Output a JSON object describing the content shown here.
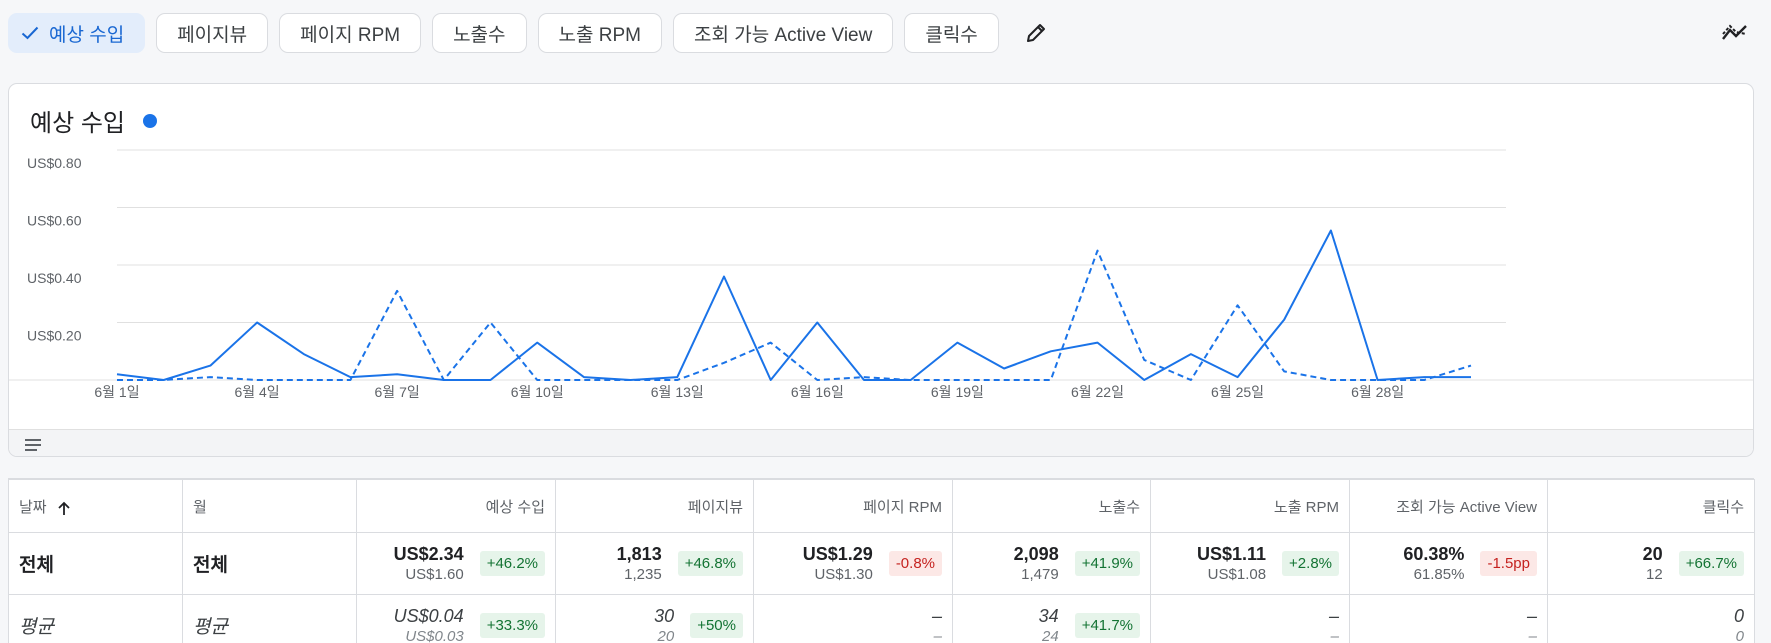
{
  "chips": [
    {
      "label": "예상 수입",
      "active": true
    },
    {
      "label": "페이지뷰",
      "active": false
    },
    {
      "label": "페이지 RPM",
      "active": false
    },
    {
      "label": "노출수",
      "active": false
    },
    {
      "label": "노출 RPM",
      "active": false
    },
    {
      "label": "조회 가능 Active View",
      "active": false
    },
    {
      "label": "클릭수",
      "active": false
    }
  ],
  "icons": {
    "check": "check-icon",
    "edit": "pencil-icon",
    "compare": "trend-compare-icon",
    "menu": "menu-lines-icon"
  },
  "colors": {
    "accent": "#1a73e8",
    "active_chip_bg": "#e3edfb",
    "positive": "#137333",
    "negative": "#c5221f"
  },
  "chart": {
    "title": "예상 수입"
  },
  "chart_data": {
    "type": "line",
    "title": "예상 수입",
    "xlabel": "",
    "ylabel": "",
    "ylim": [
      0,
      0.8
    ],
    "y_ticks": [
      {
        "value": 0.2,
        "label": "US$0.20"
      },
      {
        "value": 0.4,
        "label": "US$0.40"
      },
      {
        "value": 0.6,
        "label": "US$0.60"
      },
      {
        "value": 0.8,
        "label": "US$0.80"
      }
    ],
    "x_ticks": [
      {
        "day": 1,
        "label": "6월 1일"
      },
      {
        "day": 4,
        "label": "6월 4일"
      },
      {
        "day": 7,
        "label": "6월 7일"
      },
      {
        "day": 10,
        "label": "6월 10일"
      },
      {
        "day": 13,
        "label": "6월 13일"
      },
      {
        "day": 16,
        "label": "6월 16일"
      },
      {
        "day": 19,
        "label": "6월 19일"
      },
      {
        "day": 22,
        "label": "6월 22일"
      },
      {
        "day": 25,
        "label": "6월 25일"
      },
      {
        "day": 28,
        "label": "6월 28일"
      }
    ],
    "grid": true,
    "x": [
      1,
      2,
      3,
      4,
      5,
      6,
      7,
      8,
      9,
      10,
      11,
      12,
      13,
      14,
      15,
      16,
      17,
      18,
      19,
      20,
      21,
      22,
      23,
      24,
      25,
      26,
      27,
      28,
      29,
      30
    ],
    "series": [
      {
        "name": "current",
        "style": "solid",
        "values": [
          0.02,
          0.0,
          0.05,
          0.2,
          0.09,
          0.01,
          0.02,
          0.0,
          0.0,
          0.13,
          0.01,
          0.0,
          0.01,
          0.36,
          0.0,
          0.2,
          0.0,
          0.0,
          0.13,
          0.04,
          0.1,
          0.13,
          0.0,
          0.09,
          0.01,
          0.21,
          0.52,
          0.0,
          0.01,
          0.01
        ]
      },
      {
        "name": "previous",
        "style": "dashed",
        "values": [
          0.0,
          0.0,
          0.01,
          0.0,
          0.0,
          0.0,
          0.31,
          0.0,
          0.2,
          0.0,
          0.0,
          0.0,
          0.0,
          0.06,
          0.13,
          0.0,
          0.01,
          0.0,
          0.0,
          0.0,
          0.0,
          0.45,
          0.07,
          0.0,
          0.26,
          0.03,
          0.0,
          0.0,
          0.0,
          0.05
        ]
      }
    ]
  },
  "table": {
    "headers": {
      "date": "날짜",
      "month": "월",
      "earnings": "예상 수입",
      "pageviews": "페이지뷰",
      "page_rpm": "페이지 RPM",
      "impressions": "노출수",
      "imp_rpm": "노출 RPM",
      "active_view": "조회 가능 Active View",
      "clicks": "클릭수"
    },
    "total": {
      "date": "전체",
      "month": "전체",
      "earnings": {
        "v1": "US$2.34",
        "v2": "US$1.60",
        "badge": "+46.2%",
        "tone": "pos"
      },
      "pageviews": {
        "v1": "1,813",
        "v2": "1,235",
        "badge": "+46.8%",
        "tone": "pos"
      },
      "page_rpm": {
        "v1": "US$1.29",
        "v2": "US$1.30",
        "badge": "-0.8%",
        "tone": "neg"
      },
      "impressions": {
        "v1": "2,098",
        "v2": "1,479",
        "badge": "+41.9%",
        "tone": "pos"
      },
      "imp_rpm": {
        "v1": "US$1.11",
        "v2": "US$1.08",
        "badge": "+2.8%",
        "tone": "pos"
      },
      "active_view": {
        "v1": "60.38%",
        "v2": "61.85%",
        "badge": "-1.5pp",
        "tone": "neg"
      },
      "clicks": {
        "v1": "20",
        "v2": "12",
        "badge": "+66.7%",
        "tone": "pos"
      }
    },
    "average": {
      "date": "평균",
      "month": "평균",
      "earnings": {
        "v1": "US$0.04",
        "v2": "US$0.03",
        "badge": "+33.3%",
        "tone": "pos"
      },
      "pageviews": {
        "v1": "30",
        "v2": "20",
        "badge": "+50%",
        "tone": "pos"
      },
      "page_rpm": {
        "v1": "–",
        "v2": "–",
        "badge": "",
        "tone": "none"
      },
      "impressions": {
        "v1": "34",
        "v2": "24",
        "badge": "+41.7%",
        "tone": "pos"
      },
      "imp_rpm": {
        "v1": "–",
        "v2": "–",
        "badge": "",
        "tone": "none"
      },
      "active_view": {
        "v1": "–",
        "v2": "–",
        "badge": "",
        "tone": "none"
      },
      "clicks": {
        "v1": "0",
        "v2": "0",
        "badge": "",
        "tone": "none"
      }
    }
  }
}
